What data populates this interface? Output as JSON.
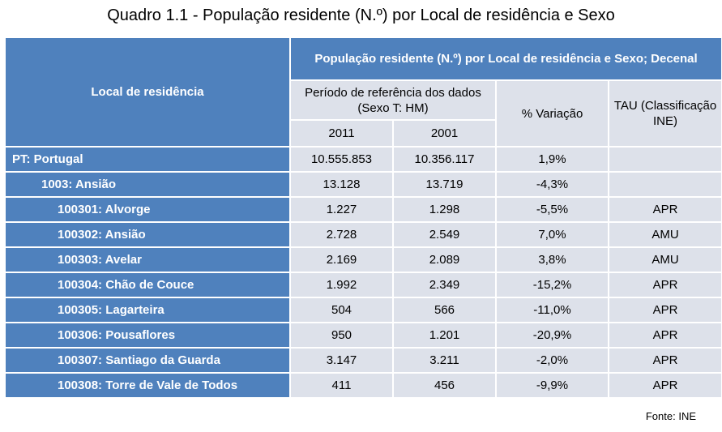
{
  "title": "Quadro 1.1 - População residente (N.º) por Local de residência e Sexo",
  "table": {
    "header": {
      "local": "Local de residência",
      "main": "População residente (N.º) por Local de residência e Sexo; Decenal",
      "period": "Período de referência dos dados (Sexo  T: HM)",
      "variation": "% Variação",
      "tau": "TAU (Classificação INE)",
      "years": [
        "2011",
        "2001"
      ]
    },
    "rows": [
      [
        "PT: Portugal",
        "10.555.853",
        "10.356.117",
        "1,9%",
        null
      ],
      [
        "1003: Ansião",
        "13.128",
        "13.719",
        "-4,3%",
        null
      ],
      [
        "100301: Alvorge",
        "1.227",
        "1.298",
        "-5,5%",
        "APR"
      ],
      [
        "100302: Ansião",
        "2.728",
        "2.549",
        "7,0%",
        "AMU"
      ],
      [
        "100303: Avelar",
        "2.169",
        "2.089",
        "3,8%",
        "AMU"
      ],
      [
        "100304: Chão de Couce",
        "1.992",
        "2.349",
        "-15,2%",
        "APR"
      ],
      [
        "100305: Lagarteira",
        "504",
        "566",
        "-11,0%",
        "APR"
      ],
      [
        "100306: Pousaflores",
        "950",
        "1.201",
        "-20,9%",
        "APR"
      ],
      [
        "100307: Santiago da Guarda",
        "3.147",
        "3.211",
        "-2,0%",
        "APR"
      ],
      [
        "100308: Torre de Vale de Todos",
        "411",
        "456",
        "-9,9%",
        "APR"
      ]
    ]
  },
  "source": "Fonte: INE"
}
